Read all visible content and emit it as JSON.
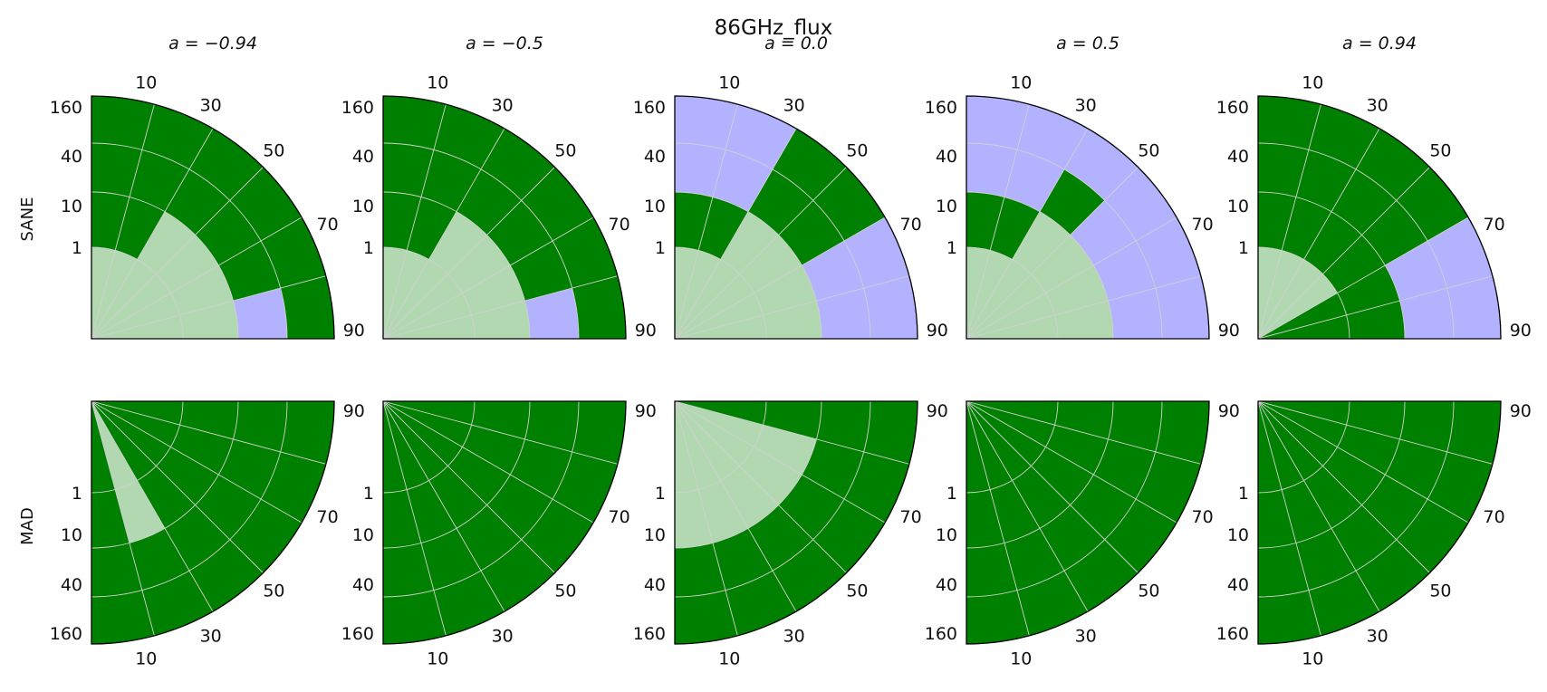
{
  "chart_data": {
    "type": "heatmap",
    "title": "86GHz_flux",
    "column_titles": [
      "a = −0.94",
      "a = −0.5",
      "a = 0.0",
      "a = 0.5",
      "a = 0.94"
    ],
    "row_labels": [
      "SANE",
      "MAD"
    ],
    "radial_tick_labels": [
      "1",
      "10",
      "40",
      "160"
    ],
    "angular_tick_labels": [
      "10",
      "30",
      "50",
      "70",
      "90"
    ],
    "angular_bins": 6,
    "radial_bins": 5,
    "legend": "none",
    "grid": true,
    "colors": {
      "pass": "#008000",
      "partial": "#b2b2ff",
      "fail": "#b2d8b2",
      "grid": "#d0d0d0",
      "edge": "#000000"
    },
    "panels": [
      [
        {
          "column": "a = −0.94",
          "row": "SANE",
          "cells": [
            [
              2,
              2,
              1,
              0,
              0
            ],
            [
              2,
              2,
              0,
              0,
              0
            ],
            [
              2,
              2,
              0,
              0,
              0
            ],
            [
              2,
              2,
              0,
              0,
              0
            ],
            [
              2,
              0,
              0,
              0,
              0
            ],
            [
              2,
              0,
              0,
              0,
              0
            ]
          ]
        },
        {
          "column": "a = −0.5",
          "row": "SANE",
          "cells": [
            [
              2,
              2,
              1,
              0,
              0
            ],
            [
              2,
              2,
              0,
              0,
              0
            ],
            [
              2,
              2,
              0,
              0,
              0
            ],
            [
              2,
              2,
              0,
              0,
              0
            ],
            [
              2,
              0,
              0,
              0,
              0
            ],
            [
              2,
              0,
              0,
              0,
              0
            ]
          ]
        },
        {
          "column": "a = 0.0",
          "row": "SANE",
          "cells": [
            [
              2,
              2,
              1,
              1,
              0
            ],
            [
              2,
              2,
              1,
              1,
              0
            ],
            [
              2,
              2,
              0,
              0,
              0
            ],
            [
              2,
              2,
              0,
              0,
              0
            ],
            [
              2,
              0,
              1,
              1,
              0
            ],
            [
              2,
              0,
              1,
              1,
              0
            ]
          ]
        },
        {
          "column": "a = 0.5",
          "row": "SANE",
          "cells": [
            [
              2,
              2,
              1,
              1,
              1
            ],
            [
              2,
              2,
              1,
              1,
              1
            ],
            [
              2,
              2,
              1,
              1,
              1
            ],
            [
              2,
              2,
              0,
              1,
              1
            ],
            [
              2,
              0,
              1,
              1,
              0
            ],
            [
              2,
              0,
              1,
              1,
              0
            ]
          ]
        },
        {
          "column": "a = 0.94",
          "row": "SANE",
          "cells": [
            [
              0,
              0,
              1,
              1,
              1
            ],
            [
              0,
              0,
              1,
              1,
              1
            ],
            [
              2,
              0,
              0,
              0,
              0
            ],
            [
              2,
              0,
              0,
              0,
              0
            ],
            [
              2,
              0,
              0,
              0,
              0
            ],
            [
              2,
              0,
              0,
              0,
              0
            ]
          ]
        }
      ],
      [
        {
          "column": "a = −0.94",
          "row": "MAD",
          "cells": [
            [
              0,
              0,
              0,
              0,
              0
            ],
            [
              0,
              0,
              0,
              0,
              0
            ],
            [
              0,
              0,
              0,
              0,
              0
            ],
            [
              0,
              0,
              0,
              0,
              0
            ],
            [
              2,
              2,
              0,
              0,
              0
            ],
            [
              0,
              0,
              0,
              0,
              0
            ]
          ]
        },
        {
          "column": "a = −0.5",
          "row": "MAD",
          "cells": [
            [
              0,
              0,
              0,
              0,
              0
            ],
            [
              0,
              0,
              0,
              0,
              0
            ],
            [
              0,
              0,
              0,
              0,
              0
            ],
            [
              0,
              0,
              0,
              0,
              0
            ],
            [
              0,
              0,
              0,
              0,
              0
            ],
            [
              0,
              0,
              0,
              0,
              0
            ]
          ]
        },
        {
          "column": "a = 0.0",
          "row": "MAD",
          "cells": [
            [
              0,
              0,
              0,
              0,
              0
            ],
            [
              2,
              2,
              0,
              0,
              0
            ],
            [
              2,
              2,
              0,
              0,
              0
            ],
            [
              2,
              2,
              0,
              0,
              0
            ],
            [
              2,
              2,
              0,
              0,
              0
            ],
            [
              2,
              2,
              0,
              0,
              0
            ]
          ]
        },
        {
          "column": "a = 0.5",
          "row": "MAD",
          "cells": [
            [
              0,
              0,
              0,
              0,
              0
            ],
            [
              0,
              0,
              0,
              0,
              0
            ],
            [
              0,
              0,
              0,
              0,
              0
            ],
            [
              0,
              0,
              0,
              0,
              0
            ],
            [
              0,
              0,
              0,
              0,
              0
            ],
            [
              0,
              0,
              0,
              0,
              0
            ]
          ]
        },
        {
          "column": "a = 0.94",
          "row": "MAD",
          "cells": [
            [
              0,
              0,
              0,
              0,
              0
            ],
            [
              0,
              0,
              0,
              0,
              0
            ],
            [
              0,
              0,
              0,
              0,
              0
            ],
            [
              0,
              0,
              0,
              0,
              0
            ],
            [
              0,
              0,
              0,
              0,
              0
            ],
            [
              0,
              0,
              0,
              0,
              0
            ]
          ]
        }
      ]
    ]
  }
}
